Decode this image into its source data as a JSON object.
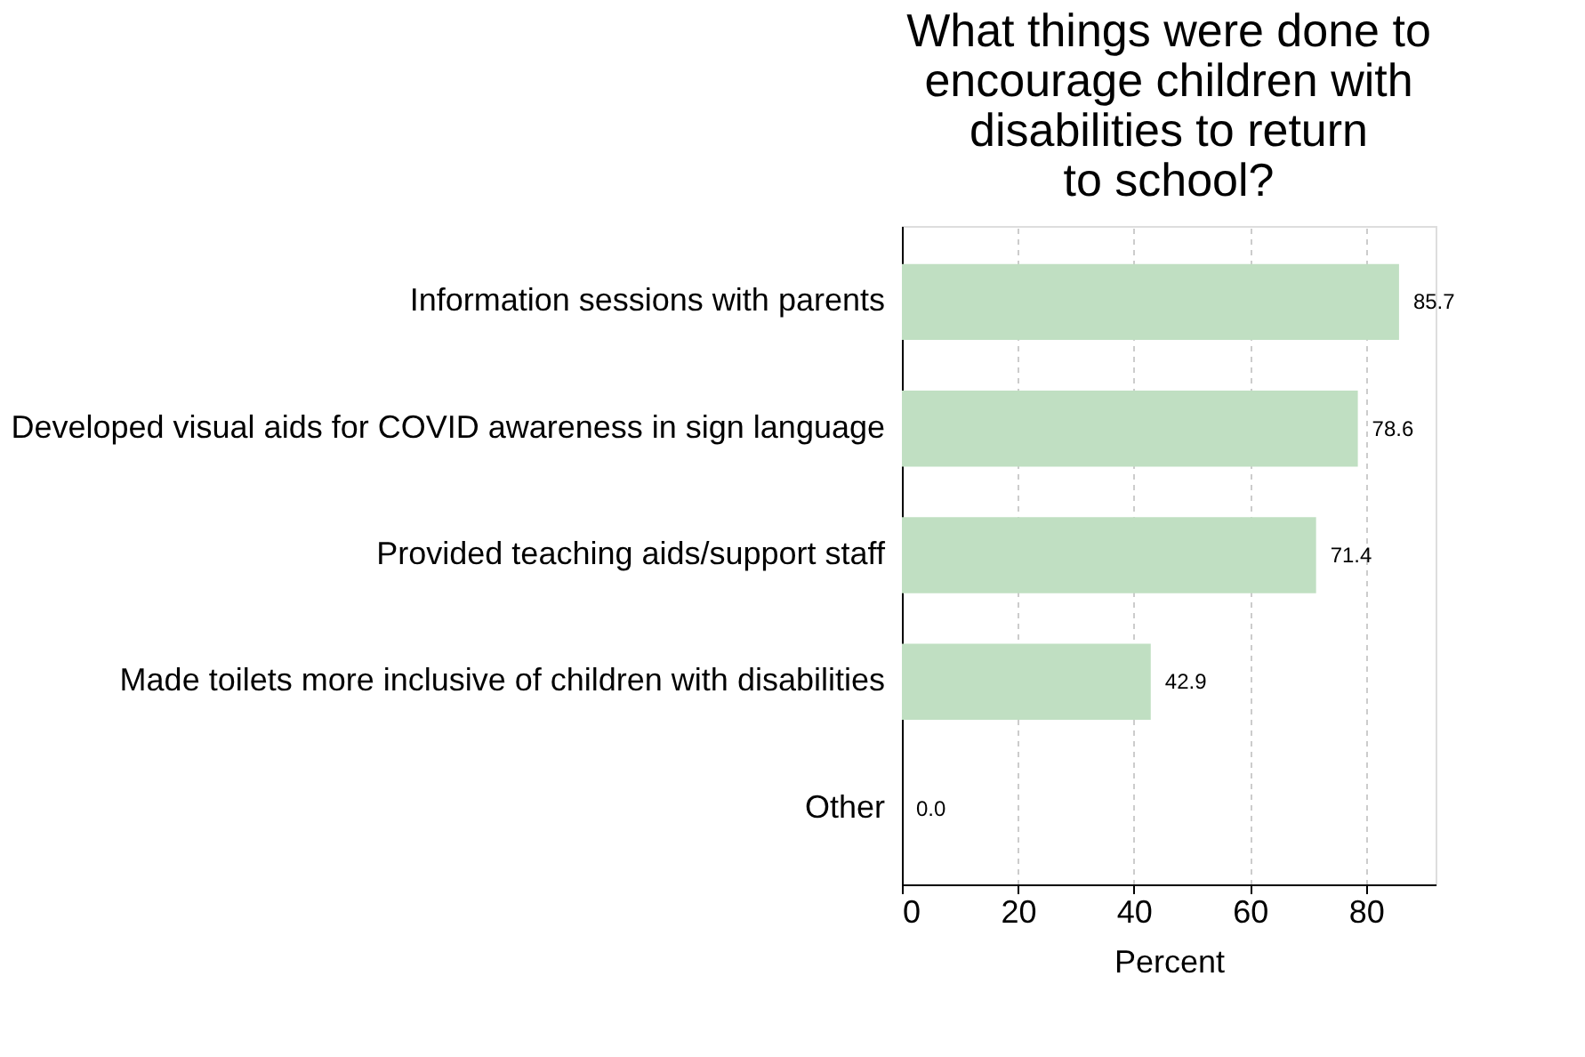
{
  "chart_data": {
    "type": "bar",
    "orientation": "horizontal",
    "title": "What things were done to encourage children with disabilities to return to school?",
    "categories": [
      "Information sessions with parents",
      "Developed visual aids for COVID awareness in sign language",
      "Provided teaching aids/support staff",
      "Made toilets more inclusive of children with disabilities",
      "Other"
    ],
    "values": [
      85.7,
      78.6,
      71.4,
      42.9,
      0.0
    ],
    "value_labels": [
      "85.7",
      "78.6",
      "71.4",
      "42.9",
      "0.0"
    ],
    "color": "#c0dfc2",
    "xlabel": "Percent",
    "xlim": [
      0,
      92
    ],
    "xticks": [
      0,
      20,
      40,
      60,
      80
    ],
    "grid": "x"
  }
}
